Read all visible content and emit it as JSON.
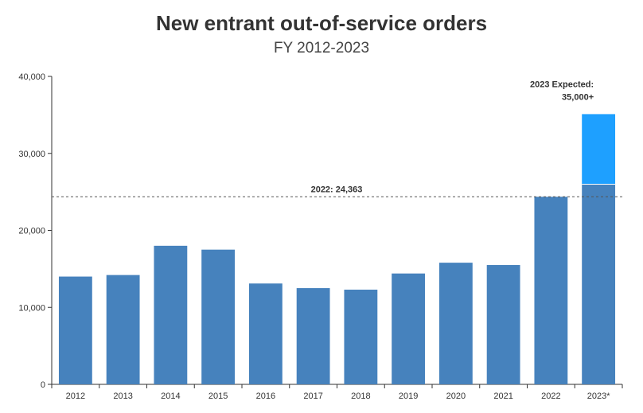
{
  "chart_data": {
    "type": "bar",
    "title": "New entrant out-of-service orders",
    "subtitle": "FY 2012-2023",
    "categories": [
      "2012",
      "2013",
      "2014",
      "2015",
      "2016",
      "2017",
      "2018",
      "2019",
      "2020",
      "2021",
      "2022",
      "2023*"
    ],
    "values": [
      14000,
      14200,
      18000,
      17500,
      13100,
      12500,
      12300,
      14400,
      15800,
      15500,
      24363,
      26000
    ],
    "expected": {
      "category": "2023*",
      "total": 35100,
      "label_line1": "2023 Expected:",
      "label_line2": "35,000+"
    },
    "reference_line": {
      "value": 24363,
      "label": "2022: 24,363"
    },
    "ylim": [
      0,
      40000
    ],
    "yticks": [
      0,
      10000,
      20000,
      30000,
      40000
    ],
    "ytick_labels": [
      "0",
      "10,000",
      "20,000",
      "30,000",
      "40,000"
    ],
    "xlabel": "",
    "ylabel": "",
    "colors": {
      "bar": "#4682bd",
      "expected": "#1ea0ff",
      "axis": "#333333",
      "reference": "#555555"
    }
  }
}
